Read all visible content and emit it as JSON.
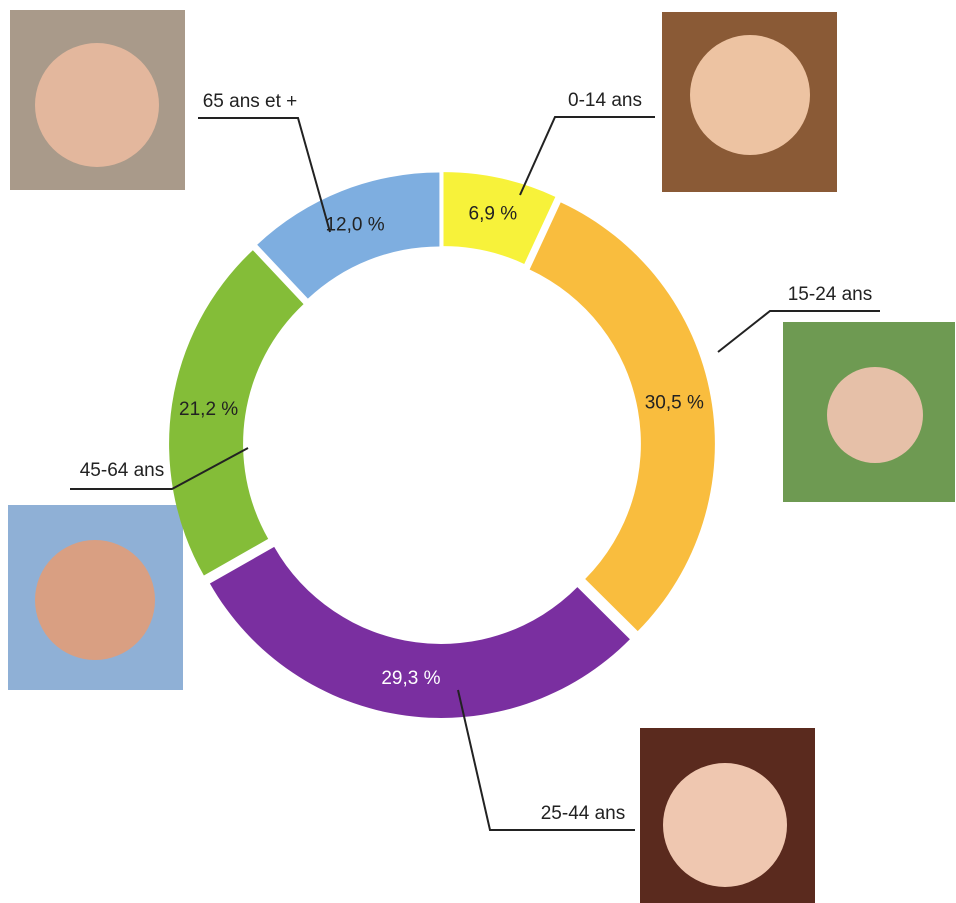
{
  "chart_data": {
    "type": "pie",
    "donut": true,
    "categories": [
      "0-14 ans",
      "15-24 ans",
      "25-44 ans",
      "45-64 ans",
      "65 ans et +"
    ],
    "values": [
      6.9,
      30.5,
      29.3,
      21.2,
      12.0
    ],
    "value_labels": [
      "6,9 %",
      "30,5 %",
      "29,3 %",
      "21,2 %",
      "12,0 %"
    ],
    "colors": [
      "#f7f23a",
      "#f9bd3e",
      "#7a2fa0",
      "#84bd38",
      "#7eaee0"
    ]
  }
}
